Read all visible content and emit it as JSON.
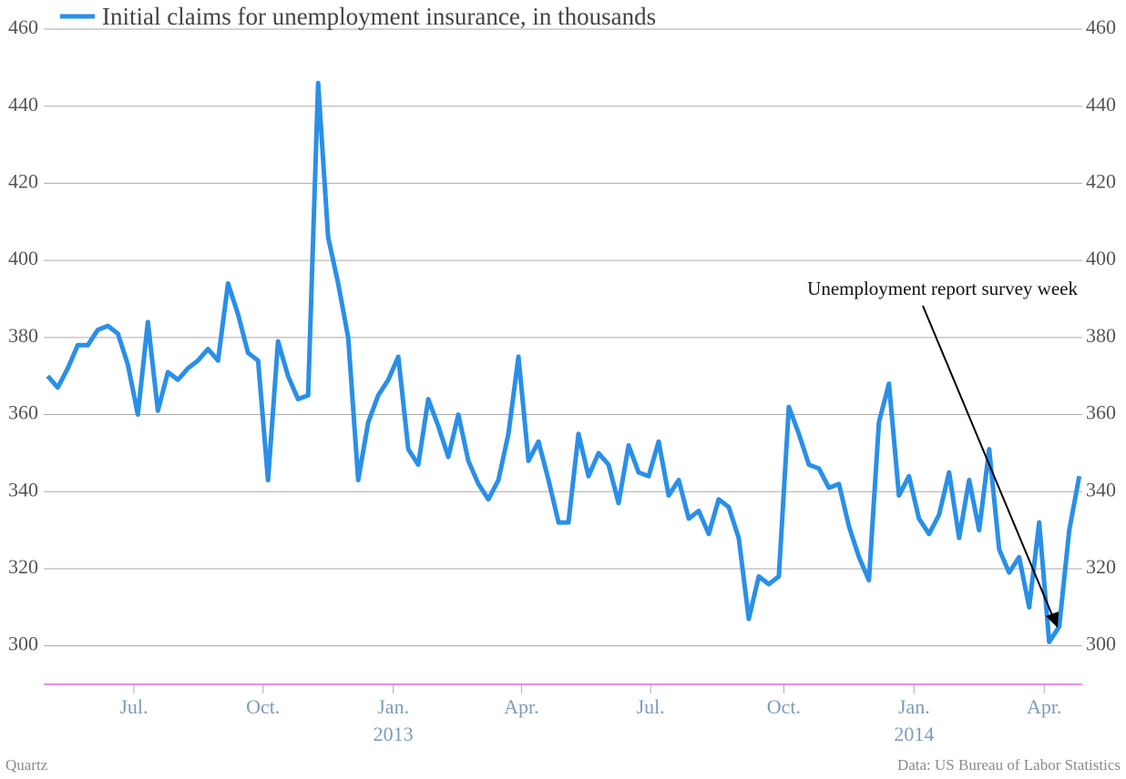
{
  "chart_data": {
    "type": "line",
    "source": "Quartz",
    "note": "Data: US Bureau of Labor Statistics",
    "annotation": "Unemployment report survey week",
    "series": [
      {
        "name": "Initial claims for unemployment insurance, in thousands",
        "color": "#2a8fe8",
        "values": [
          370,
          367,
          372,
          378,
          378,
          382,
          383,
          381,
          373,
          360,
          384,
          361,
          371,
          369,
          372,
          374,
          377,
          374,
          394,
          386,
          376,
          374,
          343,
          379,
          370,
          364,
          365,
          446,
          406,
          394,
          380,
          343,
          358,
          365,
          369,
          375,
          351,
          347,
          364,
          357,
          349,
          360,
          348,
          342,
          338,
          343,
          355,
          375,
          348,
          353,
          343,
          332,
          332,
          355,
          344,
          350,
          347,
          337,
          352,
          345,
          344,
          353,
          339,
          343,
          333,
          335,
          329,
          338,
          336,
          328,
          307,
          318,
          316,
          318,
          362,
          355,
          347,
          346,
          341,
          342,
          331,
          323,
          317,
          358,
          368,
          339,
          344,
          333,
          329,
          334,
          345,
          328,
          343,
          330,
          351,
          325,
          319,
          323,
          310,
          332,
          301,
          305,
          330,
          344
        ]
      }
    ],
    "xlim": [
      -0.4,
      103.3
    ],
    "xticks": [
      {
        "value": 8.6,
        "label": "Jul."
      },
      {
        "value": 21.5,
        "label": "Oct."
      },
      {
        "value": 34.5,
        "label": "Jan."
      },
      {
        "value": 47.3,
        "label": "Apr."
      },
      {
        "value": 60.2,
        "label": "Jul."
      },
      {
        "value": 73.5,
        "label": "Oct."
      },
      {
        "value": 86.5,
        "label": "Jan."
      },
      {
        "value": 99.5,
        "label": "Apr."
      }
    ],
    "years": [
      {
        "value": 34.5,
        "label": "2013"
      },
      {
        "value": 86.5,
        "label": "2014"
      }
    ],
    "ylim": [
      290,
      460
    ],
    "yticks": [
      300,
      320,
      340,
      360,
      380,
      400,
      420,
      440,
      460
    ],
    "grid": true
  }
}
